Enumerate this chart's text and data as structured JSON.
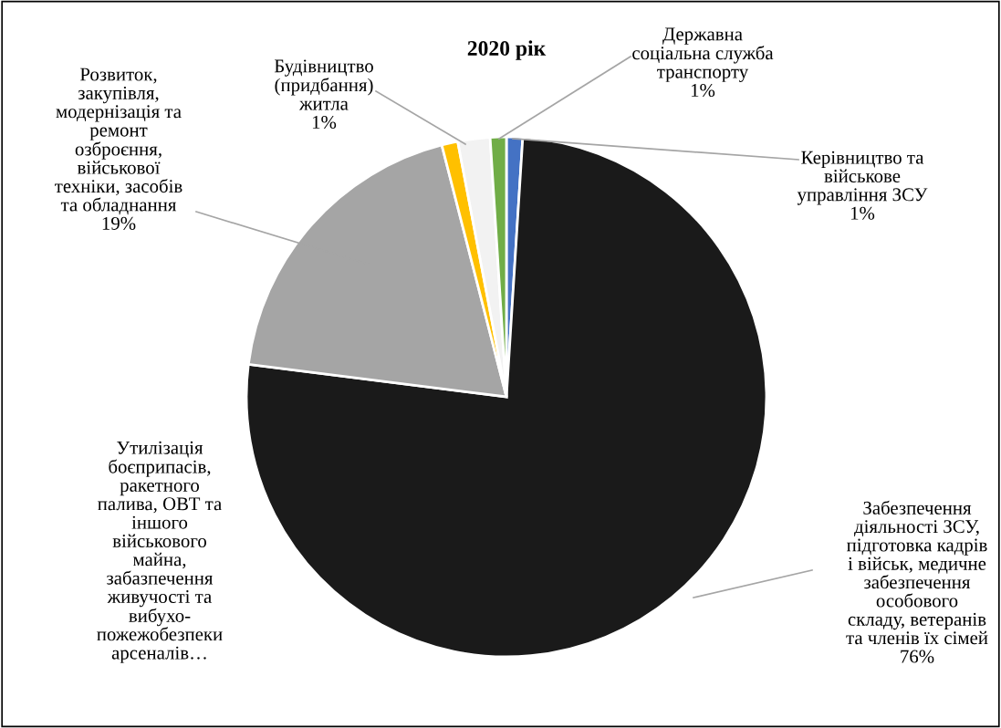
{
  "chart_data": {
    "type": "pie",
    "title": "2020 рік",
    "categories": [
      "Керівництво та\nвійськове\nуправління ЗСУ",
      "Забезпечення\nдіяльності ЗСУ,\nпідготовка кадрів\nі військ, медичне\nзабезпечення\nособового\nскладу, ветеранів\nта членів їх сімей",
      "Розвиток,\nзакупівля,\nмодернізація та\nремонт\nозброєння,\nвійськової\nтехніки, засобів\nта обладнання",
      "Будівництво\n(придбання)\nжитла",
      "Утилізація\nбоєприпасів,\nракетного\nпалива, ОВТ та\nіншого\nвійськового\nмайна,\nзабазпечення\nживучості та\nвибухо-\nпожежобезпеки\nарсеналів…",
      "Державна\nсоціальна служба\nтранспорту"
    ],
    "values": [
      1,
      76,
      19,
      1,
      2,
      1
    ],
    "value_labels": [
      "1%",
      "76%",
      "19%",
      "1%",
      null,
      "1%"
    ],
    "colors": [
      "#4472c4",
      "#1a1a1a",
      "#a5a5a5",
      "#ffc000",
      "#f2f2f2",
      "#70ad47"
    ],
    "legend": false
  }
}
